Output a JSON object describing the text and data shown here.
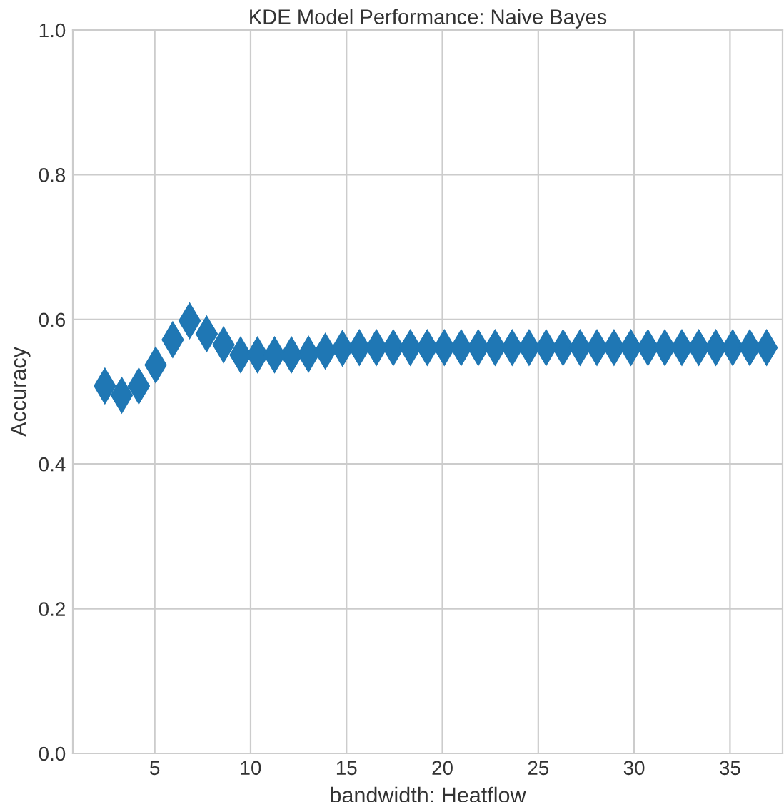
{
  "chart_data": {
    "type": "scatter",
    "title": "KDE Model Performance: Naive Bayes",
    "xlabel": "bandwidth: Heatflow",
    "ylabel": "Accuracy",
    "x": [
      2.4,
      3.28,
      4.17,
      5.05,
      5.94,
      6.82,
      7.71,
      8.59,
      9.48,
      10.36,
      11.25,
      12.13,
      13.02,
      13.9,
      14.79,
      15.67,
      16.56,
      17.44,
      18.33,
      19.21,
      20.1,
      20.98,
      21.87,
      22.75,
      23.64,
      24.52,
      25.41,
      26.29,
      27.18,
      28.06,
      28.95,
      29.83,
      30.72,
      31.6,
      32.49,
      33.37,
      34.26,
      35.14,
      36.03,
      36.91
    ],
    "values": [
      0.508,
      0.495,
      0.508,
      0.537,
      0.572,
      0.598,
      0.58,
      0.565,
      0.551,
      0.551,
      0.551,
      0.551,
      0.552,
      0.556,
      0.56,
      0.561,
      0.561,
      0.561,
      0.561,
      0.561,
      0.561,
      0.561,
      0.561,
      0.561,
      0.561,
      0.561,
      0.561,
      0.561,
      0.561,
      0.561,
      0.561,
      0.561,
      0.561,
      0.561,
      0.561,
      0.561,
      0.561,
      0.561,
      0.561,
      0.561
    ],
    "color": "#1f77b4",
    "marker": "diamond",
    "xlim": [
      0.73,
      37.74
    ],
    "xticks": [
      5,
      10,
      15,
      20,
      25,
      30,
      35
    ],
    "ylim": [
      0.0,
      1.0
    ],
    "yticks": [
      {
        "value": 0.0,
        "label": "0.0"
      },
      {
        "value": 0.2,
        "label": "0.2"
      },
      {
        "value": 0.4,
        "label": "0.4"
      },
      {
        "value": 0.6,
        "label": "0.6"
      },
      {
        "value": 0.8,
        "label": "0.8"
      },
      {
        "value": 1.0,
        "label": "1.0"
      }
    ],
    "grid": true,
    "legend": false
  }
}
